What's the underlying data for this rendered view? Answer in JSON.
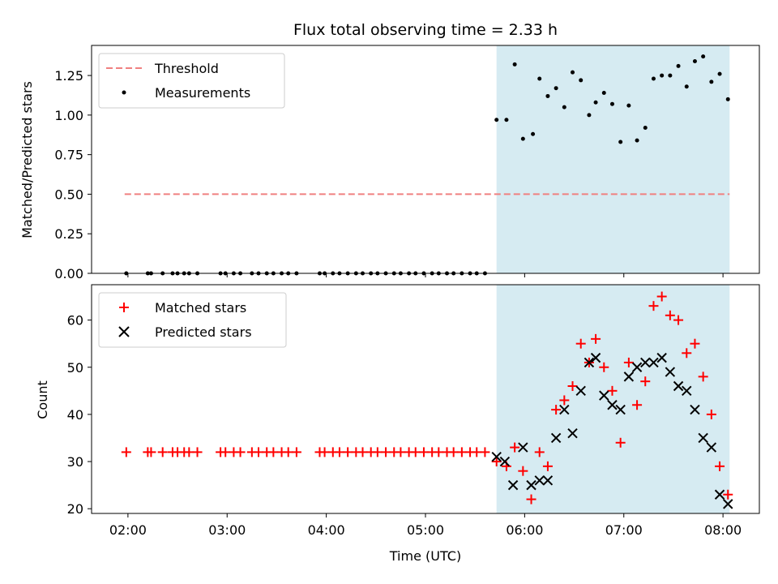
{
  "title": "Flux total observing time = 2.33 h",
  "colors": {
    "threshold": "#f08080",
    "measurement": "#000000",
    "matched": "#ff0000",
    "predicted": "#000000",
    "highlight": "#add8e6"
  },
  "chart_data": [
    {
      "type": "scatter",
      "ylabel": "Matched/Predicted stars",
      "xlim": [
        "01:38",
        "08:22"
      ],
      "ylim": [
        0,
        1.44
      ],
      "yticks": [
        0,
        0.25,
        0.5,
        0.75,
        1.0,
        1.25
      ],
      "ytick_labels": [
        "0.00",
        "0.25",
        "0.50",
        "0.75",
        "1.00",
        "1.25"
      ],
      "legend": {
        "placement": "upper-left",
        "entries": [
          "Threshold",
          "Measurements"
        ]
      },
      "highlight_span": [
        "05:43",
        "08:04"
      ],
      "threshold": {
        "name": "Threshold",
        "y": 0.5,
        "x": [
          "01:58",
          "08:04"
        ]
      },
      "series": [
        {
          "name": "Measurements",
          "x": [
            "01:59",
            "02:12",
            "02:14",
            "02:21",
            "02:27",
            "02:30",
            "02:34",
            "02:37",
            "02:42",
            "02:56",
            "02:59",
            "03:04",
            "03:08",
            "03:15",
            "03:19",
            "03:24",
            "03:28",
            "03:33",
            "03:37",
            "03:42",
            "03:56",
            "03:59",
            "04:04",
            "04:08",
            "04:13",
            "04:18",
            "04:22",
            "04:27",
            "04:31",
            "04:36",
            "04:41",
            "04:45",
            "04:50",
            "04:54",
            "04:59",
            "05:04",
            "05:08",
            "05:13",
            "05:17",
            "05:22",
            "05:27",
            "05:31",
            "05:36",
            "05:43",
            "05:49",
            "05:54",
            "05:59",
            "06:05",
            "06:09",
            "06:14",
            "06:19",
            "06:24",
            "06:29",
            "06:34",
            "06:39",
            "06:43",
            "06:48",
            "06:53",
            "06:58",
            "07:03",
            "07:08",
            "07:13",
            "07:18",
            "07:23",
            "07:28",
            "07:33",
            "07:38",
            "07:43",
            "07:48",
            "07:53",
            "07:58",
            "08:03"
          ],
          "y": [
            0,
            0,
            0,
            0,
            0,
            0,
            0,
            0,
            0,
            0,
            0,
            0,
            0,
            0,
            0,
            0,
            0,
            0,
            0,
            0,
            0,
            0,
            0,
            0,
            0,
            0,
            0,
            0,
            0,
            0,
            0,
            0,
            0,
            0,
            0,
            0,
            0,
            0,
            0,
            0,
            0,
            0,
            0,
            0.97,
            0.97,
            1.32,
            0.85,
            0.88,
            1.23,
            1.12,
            1.17,
            1.05,
            1.27,
            1.22,
            1.0,
            1.08,
            1.14,
            1.07,
            0.83,
            1.06,
            0.84,
            0.92,
            1.23,
            1.25,
            1.25,
            1.31,
            1.18,
            1.34,
            1.37,
            1.21,
            1.26,
            1.1
          ]
        }
      ]
    },
    {
      "type": "scatter",
      "xlabel": "Time (UTC)",
      "ylabel": "Count",
      "xlim": [
        "01:38",
        "08:22"
      ],
      "ylim": [
        19,
        67.5
      ],
      "xticks": [
        "02:00",
        "03:00",
        "04:00",
        "05:00",
        "06:00",
        "07:00",
        "08:00"
      ],
      "yticks": [
        20,
        30,
        40,
        50,
        60
      ],
      "legend": {
        "placement": "upper-left",
        "entries": [
          "Matched stars",
          "Predicted stars"
        ]
      },
      "highlight_span": [
        "05:43",
        "08:04"
      ],
      "series": [
        {
          "name": "Matched stars",
          "marker": "plus",
          "x": [
            "01:59",
            "02:12",
            "02:14",
            "02:21",
            "02:27",
            "02:30",
            "02:34",
            "02:37",
            "02:42",
            "02:56",
            "02:59",
            "03:04",
            "03:08",
            "03:15",
            "03:19",
            "03:24",
            "03:28",
            "03:33",
            "03:37",
            "03:42",
            "03:56",
            "03:59",
            "04:04",
            "04:08",
            "04:13",
            "04:18",
            "04:22",
            "04:27",
            "04:31",
            "04:36",
            "04:41",
            "04:45",
            "04:50",
            "04:54",
            "04:59",
            "05:04",
            "05:08",
            "05:13",
            "05:17",
            "05:22",
            "05:27",
            "05:31",
            "05:36",
            "05:43",
            "05:49",
            "05:54",
            "05:59",
            "06:04",
            "06:09",
            "06:14",
            "06:19",
            "06:24",
            "06:29",
            "06:34",
            "06:39",
            "06:43",
            "06:48",
            "06:53",
            "06:58",
            "07:03",
            "07:08",
            "07:13",
            "07:18",
            "07:23",
            "07:28",
            "07:33",
            "07:38",
            "07:43",
            "07:48",
            "07:53",
            "07:58",
            "08:03"
          ],
          "y": [
            32,
            32,
            32,
            32,
            32,
            32,
            32,
            32,
            32,
            32,
            32,
            32,
            32,
            32,
            32,
            32,
            32,
            32,
            32,
            32,
            32,
            32,
            32,
            32,
            32,
            32,
            32,
            32,
            32,
            32,
            32,
            32,
            32,
            32,
            32,
            32,
            32,
            32,
            32,
            32,
            32,
            32,
            32,
            30,
            29,
            33,
            28,
            22,
            32,
            29,
            41,
            43,
            46,
            55,
            51,
            56,
            50,
            45,
            34,
            51,
            42,
            47,
            63,
            65,
            61,
            60,
            53,
            55,
            48,
            40,
            29,
            23
          ]
        },
        {
          "name": "Predicted stars",
          "marker": "x",
          "x": [
            "05:43",
            "05:48",
            "05:53",
            "05:59",
            "06:04",
            "06:09",
            "06:14",
            "06:19",
            "06:24",
            "06:29",
            "06:34",
            "06:39",
            "06:43",
            "06:48",
            "06:53",
            "06:58",
            "07:03",
            "07:08",
            "07:13",
            "07:18",
            "07:23",
            "07:28",
            "07:33",
            "07:38",
            "07:43",
            "07:48",
            "07:53",
            "07:58",
            "08:03"
          ],
          "y": [
            31,
            30,
            25,
            33,
            25,
            26,
            26,
            35,
            41,
            36,
            45,
            51,
            52,
            44,
            42,
            41,
            48,
            50,
            51,
            51,
            52,
            49,
            46,
            45,
            41,
            35,
            33,
            23,
            21
          ]
        }
      ]
    }
  ]
}
